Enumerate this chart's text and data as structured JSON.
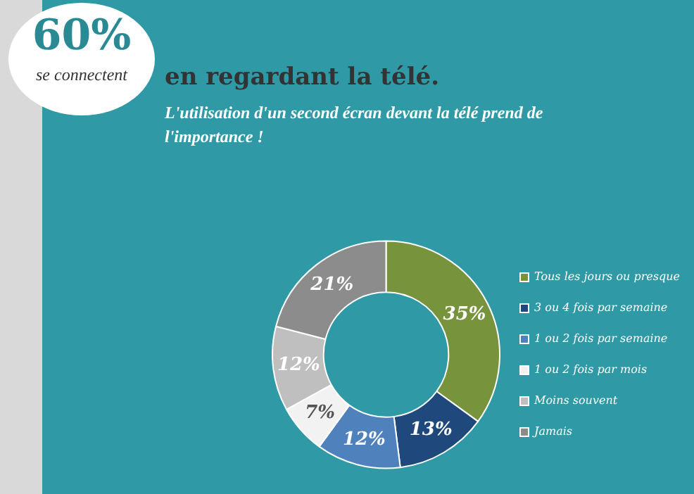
{
  "chart_data": {
    "type": "donut",
    "title": "en regardant la télé.",
    "subtitle": "L'utilisation d'un second écran devant la télé prend de l'importance !",
    "annotations": [
      "60%",
      "se connectent"
    ],
    "categories": [
      "Tous les jours ou presque",
      "3 ou 4 fois par semaine",
      "1 ou 2 fois par semaine",
      "1 ou 2 fois par mois",
      "Moins souvent",
      "Jamais"
    ],
    "values": [
      35,
      13,
      12,
      7,
      12,
      21
    ],
    "colors": [
      "#77933c",
      "#1f497d",
      "#4f81bd",
      "#f2f2f2",
      "#bfbfbf",
      "#8c8c8c"
    ],
    "value_labels": [
      "35%",
      "13%",
      "12%",
      "7%",
      "12%",
      "21%"
    ],
    "legend": "right"
  }
}
